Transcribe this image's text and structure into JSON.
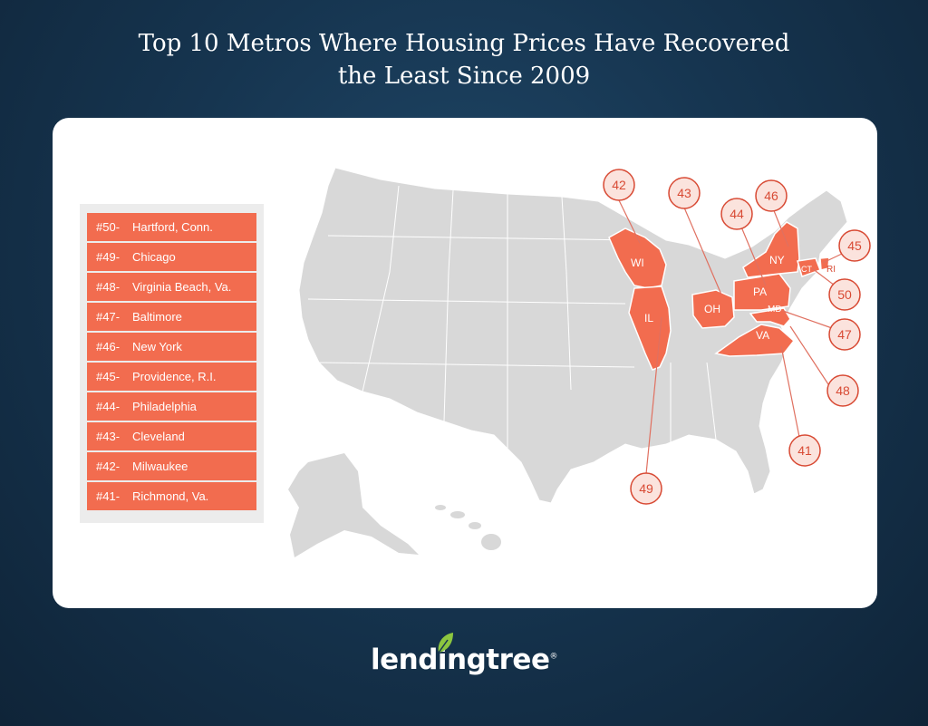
{
  "title": {
    "line1": "Top 10 Metros Where Housing Prices Have Recovered",
    "line2": "the Least Since 2009"
  },
  "legend": [
    {
      "rank": "#50-",
      "metro": "Hartford, Conn."
    },
    {
      "rank": "#49-",
      "metro": "Chicago"
    },
    {
      "rank": "#48-",
      "metro": "Virginia Beach, Va."
    },
    {
      "rank": "#47-",
      "metro": "Baltimore"
    },
    {
      "rank": "#46-",
      "metro": "New York"
    },
    {
      "rank": "#45-",
      "metro": "Providence, R.I."
    },
    {
      "rank": "#44-",
      "metro": "Philadelphia"
    },
    {
      "rank": "#43-",
      "metro": "Cleveland"
    },
    {
      "rank": "#42-",
      "metro": "Milwaukee"
    },
    {
      "rank": "#41-",
      "metro": "Richmond, Va."
    }
  ],
  "state_labels": {
    "wi": "WI",
    "il": "IL",
    "oh": "OH",
    "pa": "PA",
    "ny": "NY",
    "md": "MD",
    "va": "VA",
    "ct": "CT",
    "ri": "RI"
  },
  "badges": {
    "b42": "42",
    "b43": "43",
    "b44": "44",
    "b46": "46",
    "b45": "45",
    "b50": "50",
    "b47": "47",
    "b48": "48",
    "b41": "41",
    "b49": "49"
  },
  "logo": {
    "text": "lendingtree",
    "trademark": "®"
  },
  "colors": {
    "highlight": "#f26c4f",
    "map_gray": "#d8d8d8",
    "background": "#163550",
    "badge_fill": "#fbe3dd",
    "badge_stroke": "#d84a34"
  }
}
